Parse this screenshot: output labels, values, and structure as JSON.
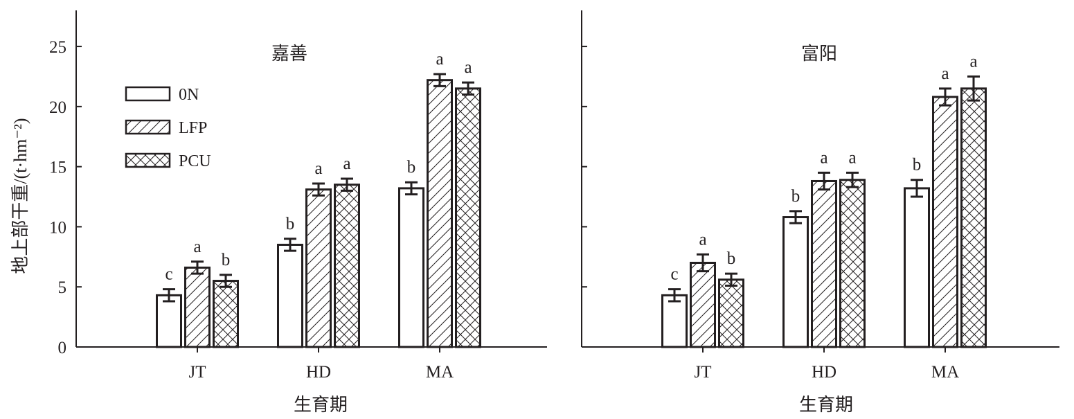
{
  "chart_data": [
    {
      "type": "bar",
      "title": "嘉善",
      "xlabel": "生育期",
      "ylabel": "地上部干重/(t·hm⁻²)",
      "categories": [
        "JT",
        "HD",
        "MA"
      ],
      "ylim": [
        0,
        28
      ],
      "yticks": [
        0,
        5,
        10,
        15,
        20,
        25
      ],
      "legend": {
        "position": "top-left",
        "entries": [
          "0N",
          "LFP",
          "PCU"
        ]
      },
      "series": [
        {
          "name": "0N",
          "pattern": "none",
          "values": [
            4.3,
            8.5,
            13.2
          ],
          "errors": [
            0.5,
            0.5,
            0.5
          ],
          "letters": [
            "c",
            "b",
            "b"
          ]
        },
        {
          "name": "LFP",
          "pattern": "diagonal",
          "values": [
            6.6,
            13.1,
            22.2
          ],
          "errors": [
            0.5,
            0.5,
            0.5
          ],
          "letters": [
            "a",
            "a",
            "a"
          ]
        },
        {
          "name": "PCU",
          "pattern": "crosshatch",
          "values": [
            5.5,
            13.5,
            21.5
          ],
          "errors": [
            0.5,
            0.5,
            0.5
          ],
          "letters": [
            "b",
            "a",
            "a"
          ]
        }
      ]
    },
    {
      "type": "bar",
      "title": "富阳",
      "xlabel": "生育期",
      "categories": [
        "JT",
        "HD",
        "MA"
      ],
      "ylim": [
        0,
        28
      ],
      "yticks": [
        0,
        5,
        10,
        15,
        20,
        25
      ],
      "series": [
        {
          "name": "0N",
          "pattern": "none",
          "values": [
            4.3,
            10.8,
            13.2
          ],
          "errors": [
            0.5,
            0.5,
            0.7
          ],
          "letters": [
            "c",
            "b",
            "b"
          ]
        },
        {
          "name": "LFP",
          "pattern": "diagonal",
          "values": [
            7.0,
            13.8,
            20.8
          ],
          "errors": [
            0.7,
            0.7,
            0.7
          ],
          "letters": [
            "a",
            "a",
            "a"
          ]
        },
        {
          "name": "PCU",
          "pattern": "crosshatch",
          "values": [
            5.6,
            13.9,
            21.5
          ],
          "errors": [
            0.5,
            0.6,
            1.0
          ],
          "letters": [
            "b",
            "a",
            "a"
          ]
        }
      ]
    }
  ]
}
